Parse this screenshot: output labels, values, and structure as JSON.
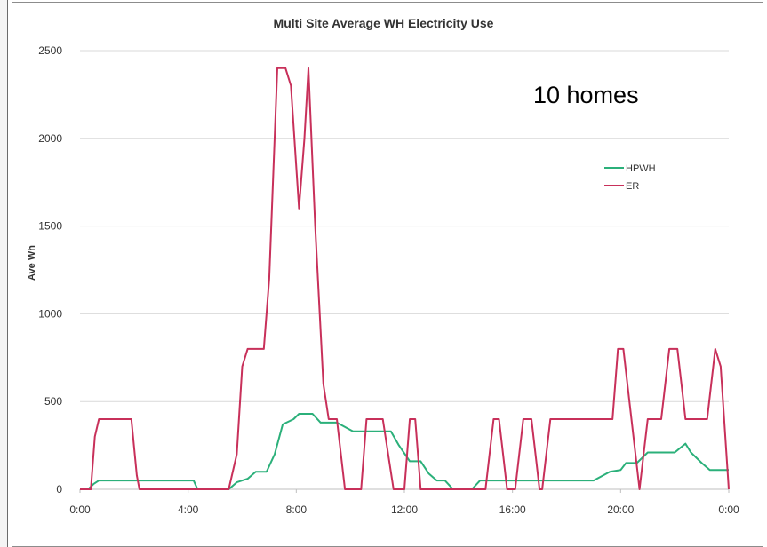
{
  "chart_data": {
    "type": "line",
    "title": "Multi Site Average WH Electricity Use",
    "annotation": "10 homes",
    "xlabel": "",
    "ylabel": "Ave Wh",
    "ylim": [
      0,
      2500
    ],
    "xlim": [
      0,
      24
    ],
    "yticks": [
      "0",
      "500",
      "1000",
      "1500",
      "2000",
      "2500"
    ],
    "xticks": [
      "0:00",
      "4:00",
      "8:00",
      "12:00",
      "16:00",
      "20:00",
      "0:00"
    ],
    "grid": "horizontal",
    "legend_position": "right",
    "series": [
      {
        "name": "HPWH",
        "color": "#2bb07a",
        "points": [
          [
            0,
            0
          ],
          [
            0.3,
            0
          ],
          [
            0.5,
            30
          ],
          [
            0.7,
            50
          ],
          [
            1.0,
            50
          ],
          [
            2.0,
            50
          ],
          [
            3.0,
            50
          ],
          [
            4.0,
            50
          ],
          [
            4.2,
            50
          ],
          [
            4.35,
            0
          ],
          [
            5.5,
            0
          ],
          [
            5.8,
            40
          ],
          [
            6.0,
            50
          ],
          [
            6.2,
            60
          ],
          [
            6.5,
            100
          ],
          [
            6.9,
            100
          ],
          [
            7.2,
            200
          ],
          [
            7.5,
            370
          ],
          [
            7.9,
            400
          ],
          [
            8.1,
            430
          ],
          [
            8.4,
            430
          ],
          [
            8.6,
            430
          ],
          [
            8.9,
            380
          ],
          [
            9.5,
            380
          ],
          [
            10.1,
            330
          ],
          [
            11.5,
            330
          ],
          [
            11.8,
            250
          ],
          [
            12.2,
            160
          ],
          [
            12.6,
            160
          ],
          [
            12.9,
            90
          ],
          [
            13.2,
            50
          ],
          [
            13.5,
            50
          ],
          [
            13.8,
            0
          ],
          [
            14.5,
            0
          ],
          [
            14.8,
            50
          ],
          [
            15.5,
            50
          ],
          [
            17.0,
            50
          ],
          [
            18.5,
            50
          ],
          [
            19.0,
            50
          ],
          [
            19.6,
            100
          ],
          [
            20.0,
            110
          ],
          [
            20.2,
            150
          ],
          [
            20.6,
            150
          ],
          [
            21.0,
            210
          ],
          [
            22.0,
            210
          ],
          [
            22.4,
            260
          ],
          [
            22.6,
            210
          ],
          [
            23.0,
            150
          ],
          [
            23.3,
            110
          ],
          [
            24,
            110
          ]
        ]
      },
      {
        "name": "ER",
        "color": "#c8305a",
        "points": [
          [
            0,
            0
          ],
          [
            0.4,
            0
          ],
          [
            0.55,
            300
          ],
          [
            0.7,
            400
          ],
          [
            1.0,
            400
          ],
          [
            1.2,
            400
          ],
          [
            1.6,
            400
          ],
          [
            1.9,
            400
          ],
          [
            2.1,
            80
          ],
          [
            2.2,
            0
          ],
          [
            5.5,
            0
          ],
          [
            5.8,
            200
          ],
          [
            6.0,
            700
          ],
          [
            6.2,
            800
          ],
          [
            6.5,
            800
          ],
          [
            6.8,
            800
          ],
          [
            7.0,
            1200
          ],
          [
            7.3,
            2400
          ],
          [
            7.6,
            2400
          ],
          [
            7.8,
            2300
          ],
          [
            8.1,
            1600
          ],
          [
            8.3,
            2000
          ],
          [
            8.45,
            2400
          ],
          [
            8.7,
            1500
          ],
          [
            9.0,
            600
          ],
          [
            9.2,
            400
          ],
          [
            9.5,
            400
          ],
          [
            9.8,
            0
          ],
          [
            10.4,
            0
          ],
          [
            10.6,
            400
          ],
          [
            11.2,
            400
          ],
          [
            11.6,
            0
          ],
          [
            12.0,
            0
          ],
          [
            12.2,
            400
          ],
          [
            12.4,
            400
          ],
          [
            12.6,
            0
          ],
          [
            15.0,
            0
          ],
          [
            15.3,
            400
          ],
          [
            15.5,
            400
          ],
          [
            15.8,
            0
          ],
          [
            16.1,
            0
          ],
          [
            16.4,
            400
          ],
          [
            16.7,
            400
          ],
          [
            17.0,
            0
          ],
          [
            17.1,
            0
          ],
          [
            17.4,
            400
          ],
          [
            19.0,
            400
          ],
          [
            19.7,
            400
          ],
          [
            19.9,
            800
          ],
          [
            20.1,
            800
          ],
          [
            20.4,
            400
          ],
          [
            20.7,
            0
          ],
          [
            21.0,
            400
          ],
          [
            21.5,
            400
          ],
          [
            21.8,
            800
          ],
          [
            22.1,
            800
          ],
          [
            22.4,
            400
          ],
          [
            22.8,
            400
          ],
          [
            23.2,
            400
          ],
          [
            23.5,
            800
          ],
          [
            23.7,
            700
          ],
          [
            24.0,
            0
          ]
        ]
      }
    ]
  }
}
